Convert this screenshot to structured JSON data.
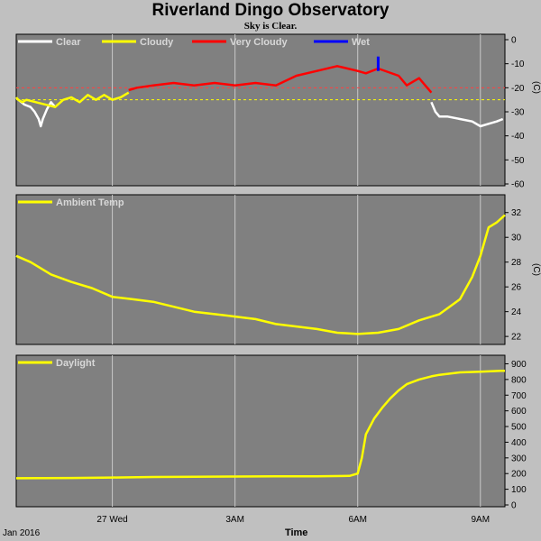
{
  "header": {
    "title": "Riverland Dingo Observatory",
    "subtitle": "Sky is Clear."
  },
  "x_axis": {
    "label": "Time",
    "date_label": "Jan 2016",
    "ticks": [
      {
        "hours": 0,
        "label": "27 Wed"
      },
      {
        "hours": 3,
        "label": "3AM"
      },
      {
        "hours": 6,
        "label": "6AM"
      },
      {
        "hours": 9,
        "label": "9AM"
      }
    ],
    "range_hours": [
      -2.35,
      9.6
    ]
  },
  "colors": {
    "background": "#c0c0c0",
    "panel": "#808080",
    "grid": "#c8c8c8",
    "clear": "#ffffff",
    "cloudy": "#ffff00",
    "very_cloudy": "#ff0000",
    "wet": "#0000ff",
    "threshold_cloudy": "#ffff00",
    "threshold_very_cloudy": "#ff4040"
  },
  "chart_data": [
    {
      "type": "line",
      "name_id": "sky-temp",
      "ylabel": "(C)",
      "ylim": [
        -60,
        0
      ],
      "yticks": [
        0,
        -10,
        -20,
        -30,
        -40,
        -50,
        -60
      ],
      "thresholds": [
        -20,
        -25
      ],
      "legend": [
        {
          "label": "Clear",
          "color": "#ffffff"
        },
        {
          "label": "Cloudy",
          "color": "#ffff00"
        },
        {
          "label": "Very Cloudy",
          "color": "#ff0000"
        },
        {
          "label": "Wet",
          "color": "#0000ff"
        }
      ],
      "series": [
        {
          "name": "Clear",
          "color": "#ffffff",
          "x": [
            -2.3,
            -2.15,
            -2.0,
            -1.9,
            -1.8,
            -1.75,
            -1.7,
            -1.6,
            -1.5,
            -1.4
          ],
          "y": [
            -25,
            -27,
            -28,
            -30,
            -33,
            -36,
            -33,
            -29,
            -26,
            -28
          ]
        },
        {
          "name": "Cloudy",
          "color": "#ffff00",
          "x": [
            -2.35,
            -2.3,
            -2.2,
            -2.1,
            -1.4,
            -1.2,
            -1.0,
            -0.8,
            -0.6,
            -0.4,
            -0.2,
            0.0,
            0.2,
            0.4
          ],
          "y": [
            -24,
            -25,
            -26,
            -25,
            -28,
            -25,
            -24,
            -26,
            -23,
            -25,
            -23,
            -25,
            -24,
            -22
          ]
        },
        {
          "name": "Very Cloudy",
          "color": "#ff0000",
          "x": [
            0.4,
            0.6,
            1.0,
            1.5,
            2.0,
            2.5,
            3.0,
            3.5,
            4.0,
            4.5,
            5.0,
            5.5,
            6.0,
            6.2,
            6.5,
            7.0,
            7.2,
            7.5,
            7.8
          ],
          "y": [
            -21,
            -20,
            -19,
            -18,
            -19,
            -18,
            -19,
            -18,
            -19,
            -15,
            -13,
            -11,
            -13,
            -14,
            -12,
            -15,
            -19,
            -16,
            -22
          ]
        },
        {
          "name": "Wet",
          "color": "#0000ff",
          "x": [
            6.5,
            6.5,
            6.5
          ],
          "y": [
            -13,
            -10,
            -7
          ]
        },
        {
          "name": "Clear",
          "color": "#ffffff",
          "x": [
            7.8,
            7.9,
            8.0,
            8.2,
            8.5,
            8.8,
            9.0,
            9.2,
            9.4,
            9.55
          ],
          "y": [
            -26,
            -30,
            -32,
            -32,
            -33,
            -34,
            -36,
            -35,
            -34,
            -33
          ]
        }
      ]
    },
    {
      "type": "line",
      "name_id": "ambient",
      "ylabel": "(C)",
      "ylim": [
        21.5,
        33
      ],
      "yticks": [
        32,
        30,
        28,
        26,
        24,
        22
      ],
      "legend": [
        {
          "label": "Ambient Temp",
          "color": "#ffff00"
        }
      ],
      "series": [
        {
          "name": "Ambient Temp",
          "color": "#ffff00",
          "x": [
            -2.35,
            -2.0,
            -1.5,
            -1.0,
            -0.5,
            0.0,
            0.5,
            1.0,
            1.5,
            2.0,
            2.5,
            3.0,
            3.5,
            4.0,
            4.5,
            5.0,
            5.5,
            6.0,
            6.5,
            7.0,
            7.5,
            8.0,
            8.5,
            8.8,
            9.0,
            9.2,
            9.4,
            9.6
          ],
          "y": [
            28.5,
            28.0,
            27.0,
            26.4,
            25.9,
            25.2,
            25.0,
            24.8,
            24.4,
            24.0,
            23.8,
            23.6,
            23.4,
            23.0,
            22.8,
            22.6,
            22.3,
            22.2,
            22.3,
            22.6,
            23.3,
            23.8,
            25.0,
            26.8,
            28.5,
            30.8,
            31.2,
            31.8
          ]
        }
      ]
    },
    {
      "type": "line",
      "name_id": "daylight",
      "ylabel": "",
      "ylim": [
        0,
        920
      ],
      "yticks": [
        900,
        800,
        700,
        600,
        500,
        400,
        300,
        200,
        100,
        0
      ],
      "legend": [
        {
          "label": "Daylight",
          "color": "#ffff00"
        }
      ],
      "series": [
        {
          "name": "Daylight",
          "color": "#ffff00",
          "x": [
            -2.35,
            -1.0,
            0.0,
            1.0,
            2.0,
            3.0,
            4.0,
            5.0,
            5.8,
            6.0,
            6.1,
            6.2,
            6.4,
            6.6,
            6.8,
            7.0,
            7.2,
            7.5,
            7.8,
            8.0,
            8.5,
            9.0,
            9.5,
            9.6
          ],
          "y": [
            170,
            172,
            175,
            178,
            180,
            181,
            182,
            183,
            185,
            200,
            300,
            450,
            550,
            620,
            680,
            730,
            770,
            800,
            820,
            830,
            845,
            850,
            855,
            855
          ]
        }
      ]
    }
  ]
}
